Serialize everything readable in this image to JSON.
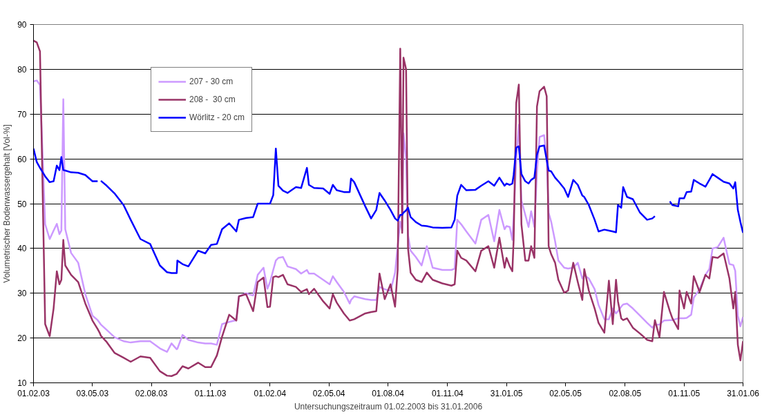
{
  "chart_data": {
    "type": "line",
    "xlabel": "Untersuchungszeitraum 01.02.2003 bis 31.01.2006",
    "ylabel": "Volumetrischer Bodenwassergehalt [Vol-%]",
    "x": [
      "2003-02-01",
      "2003-02-06",
      "2003-02-11",
      "2003-02-19",
      "2003-02-26",
      "2003-03-04",
      "2003-03-09",
      "2003-03-13",
      "2003-03-16",
      "2003-03-19",
      "2003-03-22",
      "2003-03-31",
      "2003-04-11",
      "2003-04-22",
      "2003-05-03",
      "2003-05-11",
      "2003-05-14",
      "2003-05-16",
      "2003-05-25",
      "2003-06-06",
      "2003-06-20",
      "2003-07-01",
      "2003-07-16",
      "2003-07-31",
      "2003-08-15",
      "2003-08-26",
      "2003-09-02",
      "2003-09-10",
      "2003-09-11",
      "2003-09-19",
      "2003-09-28",
      "2003-10-13",
      "2003-10-24",
      "2003-11-02",
      "2003-11-11",
      "2003-11-19",
      "2003-11-30",
      "2003-12-11",
      "2003-12-15",
      "2003-12-26",
      "2004-01-06",
      "2004-01-13",
      "2004-01-22",
      "2004-01-28",
      "2004-02-01",
      "2004-02-06",
      "2004-02-10",
      "2004-02-14",
      "2004-02-21",
      "2004-02-28",
      "2004-03-12",
      "2004-03-20",
      "2004-03-29",
      "2004-04-01",
      "2004-04-09",
      "2004-04-23",
      "2004-05-03",
      "2004-05-08",
      "2004-05-14",
      "2004-05-25",
      "2004-06-03",
      "2004-06-05",
      "2004-06-10",
      "2004-06-27",
      "2004-07-06",
      "2004-07-14",
      "2004-07-19",
      "2004-07-27",
      "2004-08-05",
      "2004-08-12",
      "2004-08-16",
      "2004-08-20",
      "2004-08-23",
      "2004-08-25",
      "2004-08-29",
      "2004-09-01",
      "2004-09-05",
      "2004-09-13",
      "2004-09-22",
      "2004-09-30",
      "2004-10-09",
      "2004-10-24",
      "2004-11-07",
      "2004-11-12",
      "2004-11-16",
      "2004-11-22",
      "2004-11-30",
      "2004-12-14",
      "2004-12-23",
      "2005-01-03",
      "2005-01-12",
      "2005-01-20",
      "2005-01-28",
      "2005-01-31",
      "2005-02-05",
      "2005-02-09",
      "2005-02-11",
      "2005-02-15",
      "2005-02-19",
      "2005-02-23",
      "2005-03-01",
      "2005-03-06",
      "2005-03-10",
      "2005-03-15",
      "2005-03-19",
      "2005-03-23",
      "2005-03-30",
      "2005-04-03",
      "2005-04-06",
      "2005-04-10",
      "2005-04-16",
      "2005-04-21",
      "2005-04-30",
      "2005-05-06",
      "2005-05-14",
      "2005-05-21",
      "2005-05-28",
      "2005-05-31",
      "2005-06-07",
      "2005-06-16",
      "2005-06-22",
      "2005-07-01",
      "2005-07-08",
      "2005-07-14",
      "2005-07-19",
      "2005-07-22",
      "2005-07-27",
      "2005-07-30",
      "2005-08-05",
      "2005-08-14",
      "2005-08-25",
      "2005-09-05",
      "2005-09-13",
      "2005-09-17",
      "2005-09-24",
      "2005-10-01",
      "2005-10-10",
      "2005-10-14",
      "2005-10-23",
      "2005-10-25",
      "2005-11-01",
      "2005-11-05",
      "2005-11-12",
      "2005-11-16",
      "2005-11-25",
      "2005-12-04",
      "2005-12-10",
      "2005-12-15",
      "2005-12-23",
      "2006-01-01",
      "2006-01-10",
      "2006-01-16",
      "2006-01-19",
      "2006-01-23",
      "2006-01-27",
      "2006-01-31"
    ],
    "series": [
      {
        "name": "207 - 30 cm",
        "color": "#cc99ff",
        "values": [
          77.3,
          77.5,
          76.5,
          45.4,
          42.1,
          44,
          45.5,
          43.2,
          44,
          73.3,
          44.3,
          39,
          36.8,
          29.8,
          25,
          24,
          23.4,
          23,
          21.8,
          20.2,
          19.3,
          19,
          19.3,
          19.3,
          17.7,
          16.9,
          18.8,
          17.5,
          17.6,
          20.7,
          19.6,
          19,
          18.8,
          18.8,
          18.5,
          23.1,
          23.6,
          24,
          29.3,
          30,
          29.5,
          34.1,
          35.7,
          31,
          32.5,
          35.2,
          37.3,
          37.9,
          38.1,
          36,
          35.4,
          34.4,
          35.2,
          34.4,
          34.4,
          33,
          32,
          33.8,
          32.5,
          30.3,
          27.7,
          28.5,
          29.3,
          28.7,
          28.5,
          28.5,
          31.4,
          30.9,
          30.5,
          34.6,
          40.5,
          46,
          44,
          65.7,
          60,
          43,
          39.5,
          38.1,
          36.2,
          40.5,
          35.7,
          35.2,
          35.2,
          35.5,
          46.4,
          45.4,
          43.8,
          41.1,
          46.4,
          47.5,
          41.6,
          48.6,
          44.3,
          45,
          44.8,
          41.9,
          47,
          59.8,
          67.6,
          50.7,
          47.5,
          44.8,
          48.3,
          44.8,
          57,
          64.9,
          65.3,
          60,
          48,
          45.9,
          41.6,
          37.3,
          35.7,
          35.5,
          35.7,
          36.8,
          33.3,
          34,
          33.3,
          30.9,
          27.4,
          24.2,
          24.2,
          26.6,
          25.5,
          26,
          27,
          27.5,
          27.7,
          26.6,
          25,
          23.4,
          22.3,
          23,
          23,
          23.9,
          24,
          24,
          24.4,
          24.4,
          24.4,
          24.5,
          25.2,
          29,
          30.9,
          34.1,
          35.4,
          40,
          40.3,
          42.4,
          36.5,
          36.3,
          35,
          25,
          22.6,
          24.7
        ]
      },
      {
        "name": "208 -  30 cm",
        "color": "#993366",
        "values": [
          86.4,
          86,
          84,
          23.1,
          20.4,
          26.6,
          34.9,
          32,
          33,
          41.9,
          36.2,
          34.1,
          32.5,
          27.7,
          23.9,
          22,
          21.2,
          20.5,
          19.1,
          16.7,
          15.6,
          14.7,
          15.9,
          15.6,
          12.6,
          11.6,
          11.5,
          12,
          12.2,
          13.7,
          13.2,
          14.5,
          13.5,
          13.5,
          16.1,
          20.3,
          25.2,
          23.9,
          29.3,
          29.8,
          26,
          32.5,
          33.5,
          26.9,
          27,
          33.6,
          33.8,
          33.6,
          34.1,
          32,
          31.4,
          30.3,
          30.9,
          29.8,
          31,
          28.2,
          26.6,
          29.8,
          27.9,
          25.5,
          23.9,
          24,
          24.2,
          25.5,
          25.8,
          26,
          34.4,
          28.7,
          32,
          27,
          35.2,
          84.6,
          43.5,
          82.6,
          80,
          40,
          34.6,
          33,
          32.5,
          34.6,
          33,
          32.2,
          31.7,
          32,
          39.5,
          37.9,
          37.3,
          34.9,
          39.5,
          40.5,
          35.7,
          42.4,
          35.7,
          37.9,
          36,
          34.9,
          41.9,
          72.5,
          76.6,
          45.4,
          37.3,
          37.3,
          40.5,
          37.9,
          71.7,
          75.1,
          76.1,
          74,
          40.5,
          38.7,
          36.8,
          33,
          30.1,
          30.6,
          36.8,
          32.5,
          28.5,
          35.4,
          30.6,
          26.6,
          23.4,
          21.2,
          32.8,
          23.1,
          33,
          28.2,
          24.4,
          24,
          24.4,
          22.3,
          21,
          19.6,
          19.3,
          24,
          20.2,
          30.3,
          26,
          24.4,
          22,
          30.6,
          26.6,
          30.3,
          27.7,
          33.8,
          30.3,
          34.1,
          33.3,
          38.1,
          37.9,
          38.9,
          33.3,
          26.6,
          30.3,
          18.5,
          15,
          19.3
        ]
      },
      {
        "name": "Wörlitz - 20 cm",
        "color": "#0000ff",
        "values": [
          62.3,
          59.3,
          58,
          56.1,
          54.8,
          55,
          58.5,
          57.5,
          60.4,
          57.5,
          57.4,
          57,
          56.9,
          56.4,
          55,
          55,
          null,
          55.1,
          54,
          52.3,
          49.7,
          46.4,
          42.1,
          41,
          36.2,
          34.7,
          34.5,
          34.5,
          37.3,
          36.5,
          36,
          39.5,
          38.9,
          40.8,
          41,
          44.3,
          45.6,
          43.8,
          46.4,
          46.8,
          47,
          50,
          50,
          50,
          50,
          51.9,
          62.3,
          54,
          52.9,
          52.4,
          53.7,
          53.5,
          58,
          54.2,
          53.5,
          53.4,
          52.2,
          54.2,
          53,
          52.6,
          52.6,
          55.6,
          54.8,
          49.4,
          46.7,
          48.6,
          52.4,
          50.7,
          48.6,
          46.7,
          46.2,
          47.5,
          47.5,
          48,
          48.5,
          49.1,
          47,
          45.9,
          45.1,
          45,
          44.7,
          44.6,
          44.7,
          46.4,
          51.8,
          54.2,
          53,
          53.1,
          54,
          55,
          54,
          55.8,
          54,
          54.5,
          54.2,
          54.5,
          56.4,
          62.5,
          62.8,
          56.6,
          55,
          54.5,
          55.3,
          55.8,
          60.9,
          62.8,
          63,
          59.8,
          57.4,
          57.2,
          55.8,
          55,
          53.4,
          51.5,
          55.3,
          54.2,
          51.8,
          51.5,
          49.7,
          46.4,
          43.8,
          44.2,
          44,
          43.8,
          43.6,
          49.7,
          49.1,
          53.7,
          51.5,
          51,
          48,
          46.4,
          46.7,
          47.2,
          null,
          null,
          50.5,
          49.7,
          49.4,
          51.2,
          51.2,
          52.6,
          52.7,
          55.3,
          54.5,
          53.8,
          55.3,
          56.6,
          55.8,
          54.9,
          54.5,
          53.4,
          54.8,
          48.6,
          45.9,
          43.5
        ]
      }
    ],
    "xlim": [
      "2003-02-01",
      "2006-01-31"
    ],
    "xticks": [
      {
        "value": "2003-02-01",
        "label": "01.02.03"
      },
      {
        "value": "2003-05-03",
        "label": "03.05.03"
      },
      {
        "value": "2003-08-02",
        "label": "02.08.03"
      },
      {
        "value": "2003-11-01",
        "label": "01.11.03"
      },
      {
        "value": "2004-02-01",
        "label": "01.02.04"
      },
      {
        "value": "2004-05-02",
        "label": "02.05.04"
      },
      {
        "value": "2004-08-01",
        "label": "01.08.04"
      },
      {
        "value": "2004-11-01",
        "label": "01.11.04"
      },
      {
        "value": "2005-01-31",
        "label": "31.01.05"
      },
      {
        "value": "2005-05-02",
        "label": "02.05.05"
      },
      {
        "value": "2005-08-02",
        "label": "02.08.05"
      },
      {
        "value": "2005-11-01",
        "label": "01.11.05"
      },
      {
        "value": "2006-01-31",
        "label": "31.01.06"
      }
    ],
    "ylim": [
      10,
      90
    ],
    "yticks": [
      10,
      20,
      30,
      40,
      50,
      60,
      70,
      80,
      90
    ],
    "grid": "y",
    "legend": "top left",
    "marker": "none",
    "line_style": "solid"
  }
}
